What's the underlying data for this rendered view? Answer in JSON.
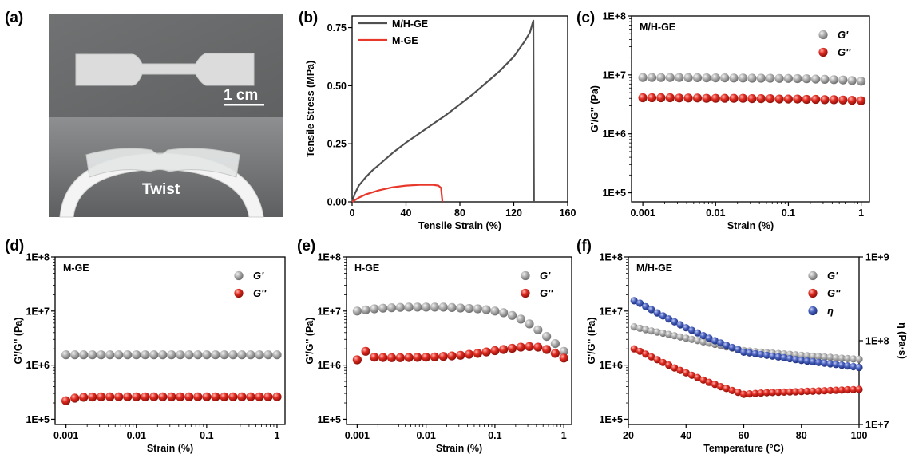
{
  "panels": {
    "a": {
      "label": "(a)",
      "scale_bar": "1 cm",
      "twist_text": "Twist"
    }
  },
  "chart_data": [
    {
      "id": "b",
      "panel_label": "(b)",
      "type": "line",
      "xlabel": "Tensile Strain (%)",
      "ylabel": "Tensile Stress (MPa)",
      "xlim": [
        0,
        160
      ],
      "ylim": [
        0,
        0.8
      ],
      "xticks": [
        0,
        40,
        80,
        120,
        160
      ],
      "xtick_labels": [
        "0",
        "40",
        "80",
        "120",
        "160"
      ],
      "yticks": [
        0,
        0.25,
        0.5,
        0.75
      ],
      "ytick_labels": [
        "0.00",
        "0.25",
        "0.50",
        "0.75"
      ],
      "legend_position": "top-left",
      "series": [
        {
          "name": "M/H-GE",
          "color": "#505050",
          "x": [
            0,
            2,
            5,
            10,
            15,
            20,
            30,
            40,
            50,
            60,
            70,
            80,
            90,
            100,
            110,
            120,
            128,
            132,
            134,
            134.5,
            135
          ],
          "y": [
            0,
            0.035,
            0.07,
            0.105,
            0.135,
            0.16,
            0.21,
            0.255,
            0.295,
            0.335,
            0.375,
            0.42,
            0.465,
            0.515,
            0.565,
            0.625,
            0.69,
            0.73,
            0.77,
            0.78,
            0
          ]
        },
        {
          "name": "M-GE",
          "color": "#e8372b",
          "x": [
            0,
            5,
            10,
            20,
            30,
            40,
            50,
            60,
            64,
            66,
            67
          ],
          "y": [
            0,
            0.018,
            0.032,
            0.05,
            0.063,
            0.07,
            0.073,
            0.073,
            0.07,
            0.06,
            0
          ]
        }
      ]
    },
    {
      "id": "c",
      "panel_label": "(c)",
      "type": "scatter",
      "title": "M/H-GE",
      "xlabel": "Strain (%)",
      "ylabel": "G'/G'' (Pa)",
      "xscale": "log",
      "yscale": "log",
      "xlim": [
        0.0007,
        1.3
      ],
      "ylim": [
        70000,
        100000000
      ],
      "xticks": [
        0.001,
        0.01,
        0.1,
        1
      ],
      "xtick_labels": [
        "0.001",
        "0.01",
        "0.1",
        "1"
      ],
      "yticks": [
        100000,
        1000000,
        10000000,
        100000000
      ],
      "ytick_labels": [
        "1E+5",
        "1E+6",
        "1E+7",
        "1E+8"
      ],
      "legend_position": "top-right",
      "series": [
        {
          "name": "G'",
          "color": "#9a9a9a",
          "x_start": 0.001,
          "x_end": 1,
          "count": 25,
          "y": [
            9000000,
            9000000,
            9000000,
            9000000,
            9000000,
            8950000,
            8950000,
            8900000,
            8900000,
            8900000,
            8850000,
            8850000,
            8800000,
            8800000,
            8750000,
            8700000,
            8700000,
            8650000,
            8600000,
            8500000,
            8400000,
            8300000,
            8200000,
            8000000,
            7800000
          ]
        },
        {
          "name": "G''",
          "color": "#d8231b",
          "x_start": 0.001,
          "x_end": 1,
          "count": 25,
          "y": [
            4100000,
            4100000,
            4100000,
            4100000,
            4050000,
            4050000,
            4050000,
            4000000,
            4000000,
            4000000,
            4000000,
            4000000,
            3950000,
            3950000,
            3950000,
            3900000,
            3900000,
            3900000,
            3850000,
            3850000,
            3800000,
            3800000,
            3750000,
            3700000,
            3650000
          ]
        }
      ]
    },
    {
      "id": "d",
      "panel_label": "(d)",
      "type": "scatter",
      "title": "M-GE",
      "xlabel": "Strain (%)",
      "ylabel": "G'/G'' (Pa)",
      "xscale": "log",
      "yscale": "log",
      "xlim": [
        0.0007,
        1.3
      ],
      "ylim": [
        80000,
        100000000
      ],
      "xticks": [
        0.001,
        0.01,
        0.1,
        1
      ],
      "xtick_labels": [
        "0.001",
        "0.01",
        "0.1",
        "1"
      ],
      "yticks": [
        100000,
        1000000,
        10000000,
        100000000
      ],
      "ytick_labels": [
        "1E+5",
        "1E+6",
        "1E+7",
        "1E+8"
      ],
      "legend_position": "top-right",
      "series": [
        {
          "name": "G'",
          "color": "#9a9a9a",
          "x_start": 0.001,
          "x_end": 1,
          "count": 25,
          "y": [
            1550000,
            1550000,
            1550000,
            1550000,
            1550000,
            1550000,
            1550000,
            1550000,
            1550000,
            1550000,
            1550000,
            1550000,
            1550000,
            1550000,
            1550000,
            1550000,
            1550000,
            1550000,
            1550000,
            1550000,
            1550000,
            1550000,
            1550000,
            1550000,
            1550000
          ]
        },
        {
          "name": "G''",
          "color": "#d8231b",
          "x_start": 0.001,
          "x_end": 1,
          "count": 25,
          "y": [
            220000,
            245000,
            255000,
            258000,
            260000,
            260000,
            260000,
            260000,
            260000,
            260000,
            260000,
            260000,
            260000,
            260000,
            260000,
            260000,
            260000,
            260000,
            260000,
            260000,
            260000,
            260000,
            260000,
            260000,
            260000
          ]
        }
      ]
    },
    {
      "id": "e",
      "panel_label": "(e)",
      "type": "scatter",
      "title": "H-GE",
      "xlabel": "Strain (%)",
      "ylabel": "G'/G'' (Pa)",
      "xscale": "log",
      "yscale": "log",
      "xlim": [
        0.0007,
        1.3
      ],
      "ylim": [
        80000,
        100000000
      ],
      "xticks": [
        0.001,
        0.01,
        0.1,
        1
      ],
      "xtick_labels": [
        "0.001",
        "0.01",
        "0.1",
        "1"
      ],
      "yticks": [
        100000,
        1000000,
        10000000,
        100000000
      ],
      "ytick_labels": [
        "1E+5",
        "1E+6",
        "1E+7",
        "1E+8"
      ],
      "legend_position": "top-right",
      "series": [
        {
          "name": "G'",
          "color": "#9a9a9a",
          "x_start": 0.001,
          "x_end": 1,
          "count": 25,
          "y": [
            10000000,
            10500000,
            11000000,
            11300000,
            11500000,
            11700000,
            11800000,
            11800000,
            11800000,
            11800000,
            11800000,
            11600000,
            11400000,
            11200000,
            11000000,
            10600000,
            10000000,
            9300000,
            8300000,
            7100000,
            5800000,
            4500000,
            3400000,
            2500000,
            1800000
          ]
        },
        {
          "name": "G''",
          "color": "#d8231b",
          "x_start": 0.001,
          "x_end": 1,
          "count": 25,
          "y": [
            1250000,
            1800000,
            1400000,
            1380000,
            1370000,
            1370000,
            1380000,
            1390000,
            1400000,
            1420000,
            1450000,
            1480000,
            1520000,
            1580000,
            1650000,
            1750000,
            1850000,
            1950000,
            2050000,
            2150000,
            2200000,
            2150000,
            1950000,
            1650000,
            1350000
          ]
        }
      ]
    },
    {
      "id": "f",
      "panel_label": "(f)",
      "type": "scatter",
      "title": "M/H-GE",
      "xlabel": "Temperature (°C)",
      "ylabel": "G'/G'' (Pa)",
      "y2label": "η (Pa·s)",
      "xscale": "linear",
      "yscale": "log",
      "y2scale": "log",
      "xlim": [
        20,
        100
      ],
      "ylim": [
        80000,
        100000000
      ],
      "y2lim": [
        10000000,
        1000000000
      ],
      "xticks": [
        20,
        40,
        60,
        80,
        100
      ],
      "xtick_labels": [
        "20",
        "40",
        "60",
        "80",
        "100"
      ],
      "yticks": [
        100000,
        1000000,
        10000000,
        100000000
      ],
      "ytick_labels": [
        "1E+5",
        "1E+6",
        "1E+7",
        "1E+8"
      ],
      "y2ticks": [
        10000000,
        100000000,
        1000000000
      ],
      "y2tick_labels": [
        "1E+7",
        "1E+8",
        "1E+9"
      ],
      "legend_position": "top-right",
      "series": [
        {
          "name": "G'",
          "color": "#9a9a9a",
          "axis": "left",
          "x": [
            22,
            24,
            26,
            28,
            30,
            32,
            34,
            36,
            38,
            40,
            42,
            44,
            46,
            48,
            50,
            52,
            54,
            56,
            58,
            60,
            62,
            64,
            66,
            68,
            70,
            72,
            74,
            76,
            78,
            80,
            82,
            84,
            86,
            88,
            90,
            92,
            94,
            96,
            98,
            100
          ],
          "y": [
            5100000,
            4800000,
            4550000,
            4300000,
            4100000,
            3900000,
            3700000,
            3500000,
            3320000,
            3150000,
            3000000,
            2850000,
            2700000,
            2560000,
            2430000,
            2300000,
            2180000,
            2070000,
            1960000,
            1860000,
            1820000,
            1780000,
            1740000,
            1700000,
            1670000,
            1640000,
            1610000,
            1580000,
            1550000,
            1520000,
            1490000,
            1460000,
            1440000,
            1410000,
            1390000,
            1360000,
            1340000,
            1320000,
            1300000,
            1280000
          ]
        },
        {
          "name": "G''",
          "color": "#d8231b",
          "axis": "left",
          "x": [
            22,
            24,
            26,
            28,
            30,
            32,
            34,
            36,
            38,
            40,
            42,
            44,
            46,
            48,
            50,
            52,
            54,
            56,
            58,
            60,
            62,
            64,
            66,
            68,
            70,
            72,
            74,
            76,
            78,
            80,
            82,
            84,
            86,
            88,
            90,
            92,
            94,
            96,
            98,
            100
          ],
          "y": [
            2000000,
            1800000,
            1600000,
            1420000,
            1260000,
            1120000,
            1000000,
            890000,
            800000,
            720000,
            650000,
            590000,
            530000,
            480000,
            440000,
            400000,
            370000,
            340000,
            315000,
            290000,
            295000,
            300000,
            305000,
            310000,
            312000,
            315000,
            318000,
            320000,
            322000,
            325000,
            328000,
            330000,
            333000,
            336000,
            340000,
            343000,
            346000,
            350000,
            353000,
            356000
          ]
        },
        {
          "name": "η",
          "color": "#3d56b0",
          "axis": "right",
          "x": [
            22,
            24,
            26,
            28,
            30,
            32,
            34,
            36,
            38,
            40,
            42,
            44,
            46,
            48,
            50,
            52,
            54,
            56,
            58,
            60,
            62,
            64,
            66,
            68,
            70,
            72,
            74,
            76,
            78,
            80,
            82,
            84,
            86,
            88,
            90,
            92,
            94,
            96,
            98,
            100
          ],
          "y": [
            300000000,
            280000000,
            255000000,
            235000000,
            215000000,
            198000000,
            182000000,
            168000000,
            155000000,
            143000000,
            133000000,
            124000000,
            115000000,
            107000000,
            100000000,
            94000000,
            88000000,
            83000000,
            78000000,
            73000000,
            71500000,
            70000000,
            68500000,
            67000000,
            65500000,
            64000000,
            62500000,
            61000000,
            59500000,
            58000000,
            57000000,
            56000000,
            55000000,
            54000000,
            53000000,
            52000000,
            51000000,
            50000000,
            49000000,
            48000000
          ]
        }
      ]
    }
  ]
}
